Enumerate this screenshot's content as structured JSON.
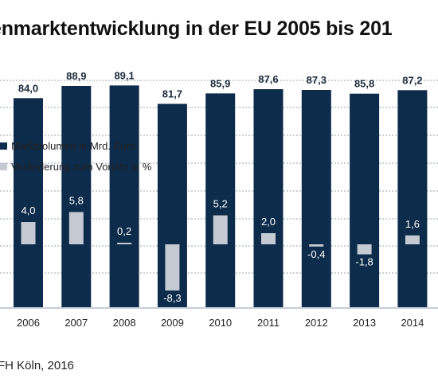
{
  "title": "enmarktentwicklung in der EU 2005 bis 201",
  "source": "FH Köln, 2016",
  "colors": {
    "bar": "#0d2b4a",
    "change": "#c3cad2",
    "grid": "#9aa4ae",
    "axis": "#c4cdd6"
  },
  "chart_data": {
    "type": "bar",
    "categories": [
      "2006",
      "2007",
      "2008",
      "2009",
      "2010",
      "2011",
      "2012",
      "2013",
      "2014"
    ],
    "series": [
      {
        "name": "Marktvolumen in Mrd. Euro",
        "values": [
          84.0,
          88.9,
          89.1,
          81.7,
          85.9,
          87.6,
          87.3,
          85.8,
          87.2
        ],
        "labels": [
          "84,0",
          "88,9",
          "89,1",
          "81,7",
          "85,9",
          "87,6",
          "87,3",
          "85,8",
          "87,2"
        ]
      },
      {
        "name": "Veränderung zum Vorjahr in %",
        "values": [
          4.0,
          5.8,
          0.2,
          -8.3,
          5.2,
          2.0,
          -0.4,
          -1.8,
          1.6
        ],
        "labels": [
          "4,0",
          "5,8",
          "0,2",
          "-8,3",
          "5,2",
          "2,0",
          "-0,4",
          "-1,8",
          "1,6"
        ]
      }
    ],
    "legend": "left",
    "grid": true
  }
}
